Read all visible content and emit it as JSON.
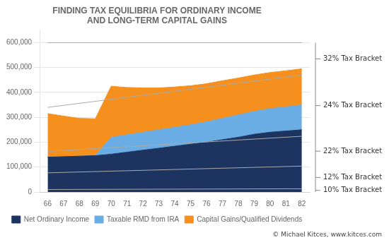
{
  "chart_data": {
    "type": "area",
    "title": [
      "FINDING TAX EQUILIBRIA FOR ORDINARY INCOME",
      "AND LONG-TERM CAPITAL GAINS"
    ],
    "x": [
      66,
      67,
      68,
      69,
      70,
      71,
      72,
      73,
      74,
      75,
      76,
      77,
      78,
      79,
      80,
      81,
      82
    ],
    "series": [
      {
        "name": "Net Ordinary Income",
        "color": "#1d3461",
        "values": [
          140000,
          142000,
          144000,
          146000,
          152000,
          160000,
          168000,
          176000,
          184000,
          192000,
          200000,
          210000,
          220000,
          232000,
          240000,
          245000,
          250000
        ]
      },
      {
        "name": "Taxable RMD from IRA",
        "color": "#6aace4",
        "values": [
          0,
          0,
          0,
          0,
          68000,
          70000,
          72000,
          74000,
          76000,
          78000,
          82000,
          86000,
          90000,
          92000,
          95000,
          97000,
          100000
        ]
      },
      {
        "name": "Capital Gains/Qualified Dividends",
        "color": "#f5901e",
        "values": [
          175000,
          163000,
          152000,
          148000,
          205000,
          190000,
          178000,
          168000,
          162000,
          157000,
          153000,
          151000,
          148000,
          146000,
          145000,
          145000,
          145000
        ]
      }
    ],
    "stacked": true,
    "xlim": [
      65.5,
      82.5
    ],
    "xticks": [
      66,
      67,
      68,
      69,
      70,
      71,
      72,
      73,
      74,
      75,
      76,
      77,
      78,
      79,
      80,
      81,
      82
    ],
    "ylim": [
      0,
      650000
    ],
    "yticks": [
      0,
      {
        "value": 100000,
        "label": "100,000"
      },
      {
        "value": 200000,
        "label": "200,000"
      },
      {
        "value": 300000,
        "label": "300,000"
      },
      {
        "value": 400000,
        "label": "400,000"
      },
      {
        "value": 500000,
        "label": "500,000"
      },
      {
        "value": 600000,
        "label": "600,000"
      }
    ],
    "grid": "y",
    "legend": "bottom",
    "bracket_lines": {
      "y_start": [
        10000,
        77000,
        163000,
        340000,
        600000
      ],
      "y_end": [
        13000,
        104000,
        224000,
        470000,
        600000
      ],
      "color": "#aaaaaa"
    },
    "brackets": [
      {
        "label": "32% Tax Bracket",
        "from": 470000,
        "to": 600000
      },
      {
        "label": "24% Tax Bracket",
        "from": 224000,
        "to": 470000
      },
      {
        "label": "22% Tax Bracket",
        "from": 104000,
        "to": 224000
      },
      {
        "label": "12% Tax Bracket",
        "from": 13000,
        "to": 104000
      },
      {
        "label": "10% Tax Bracket",
        "from": 0,
        "to": 13000
      }
    ],
    "annotations": [
      "© Michael Kitces,",
      "www.kitces.com"
    ]
  }
}
